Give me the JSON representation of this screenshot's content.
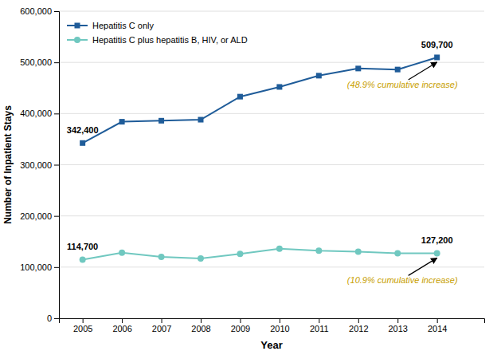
{
  "chart_data": {
    "type": "line",
    "xlabel": "Year",
    "ylabel": "Number of Inpatient Stays",
    "x": [
      2005,
      2006,
      2007,
      2008,
      2009,
      2010,
      2011,
      2012,
      2013,
      2014
    ],
    "series": [
      {
        "name": "Hepatitis C only",
        "color": "#1F5C99",
        "marker": "square",
        "values": [
          342400,
          384000,
          386000,
          388000,
          433000,
          452000,
          474000,
          488000,
          486000,
          509700
        ],
        "value_labels": [
          "342,400",
          null,
          null,
          null,
          null,
          null,
          null,
          null,
          null,
          "509,700"
        ]
      },
      {
        "name": "Hepatitis C plus hepatitis B, HIV, or ALD",
        "color": "#70C8C0",
        "marker": "circle",
        "values": [
          114700,
          128000,
          120000,
          117000,
          126000,
          136000,
          132000,
          130000,
          127000,
          127200
        ],
        "value_labels": [
          "114,700",
          null,
          null,
          null,
          null,
          null,
          null,
          null,
          null,
          "127,200"
        ]
      }
    ],
    "data_labels": true,
    "xlim": [
      2004.4,
      2015.2
    ],
    "xticks": [
      2005,
      2006,
      2007,
      2008,
      2009,
      2010,
      2011,
      2012,
      2013,
      2014
    ],
    "ylim": [
      0,
      600000
    ],
    "yticks": [
      0,
      {
        "value": 100000,
        "label": "100,000"
      },
      {
        "value": 200000,
        "label": "200,000"
      },
      {
        "value": 300000,
        "label": "300,000"
      },
      {
        "value": 400000,
        "label": "400,000"
      },
      {
        "value": 500000,
        "label": "500,000"
      },
      {
        "value": 600000,
        "label": "600,000"
      }
    ],
    "grid": "y",
    "legend": "top-left",
    "annotations": [
      {
        "text": "(48.9% cumulative increase)",
        "x": 2014,
        "y": 509700,
        "color": "#C8A000"
      },
      {
        "text": "(10.9% cumulative increase)",
        "x": 2014,
        "y": 127200,
        "color": "#C8A000"
      }
    ]
  }
}
